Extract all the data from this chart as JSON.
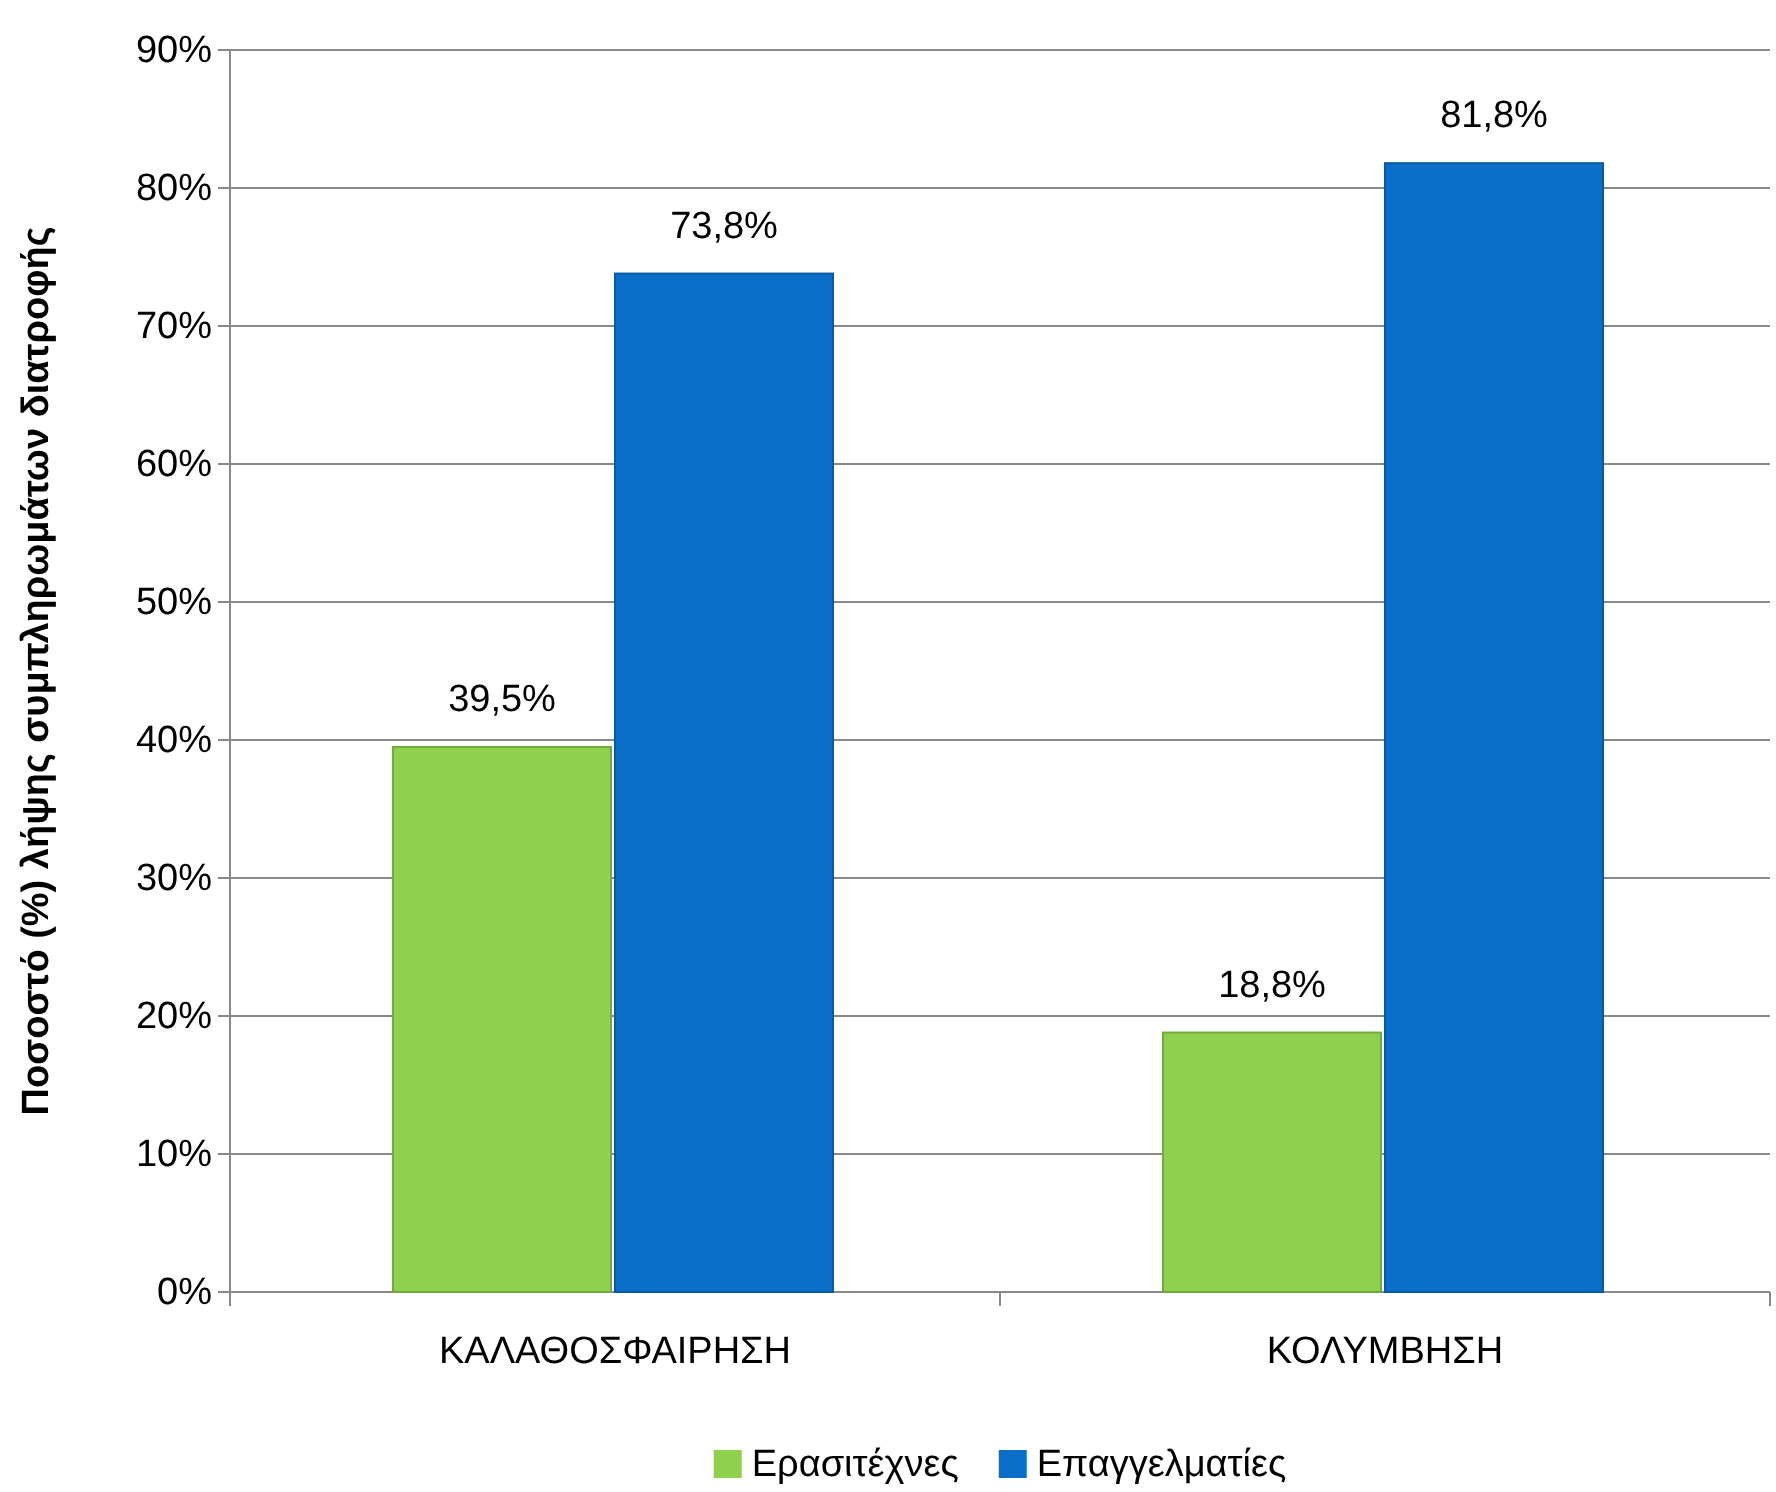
{
  "chart_data": {
    "type": "bar",
    "ylabel": "Ποσοστό (%) λήψης συμπληρωμάτων διατροφής",
    "categories": [
      "ΚΑΛΑΘΟΣΦΑΙΡΗΣΗ",
      "ΚΟΛΥΜΒΗΣΗ"
    ],
    "series": [
      {
        "name": "Ερασιτέχνες",
        "color": "#8fd14f",
        "values": [
          39.5,
          18.8
        ],
        "value_labels": [
          "39,5%",
          "18,8%"
        ]
      },
      {
        "name": "Επαγγελματίες",
        "color": "#0a6fc8",
        "values": [
          73.8,
          81.8
        ],
        "value_labels": [
          "73,8%",
          "81,8%"
        ]
      }
    ],
    "ylim": [
      0,
      90
    ],
    "yticks": [
      {
        "value": 0,
        "label": "0%"
      },
      {
        "value": 10,
        "label": "10%"
      },
      {
        "value": 20,
        "label": "20%"
      },
      {
        "value": 30,
        "label": "30%"
      },
      {
        "value": 40,
        "label": "40%"
      },
      {
        "value": 50,
        "label": "50%"
      },
      {
        "value": 60,
        "label": "60%"
      },
      {
        "value": 70,
        "label": "70%"
      },
      {
        "value": 80,
        "label": "80%"
      },
      {
        "value": 90,
        "label": "90%"
      }
    ],
    "grid": "y",
    "legend": "bottom"
  }
}
